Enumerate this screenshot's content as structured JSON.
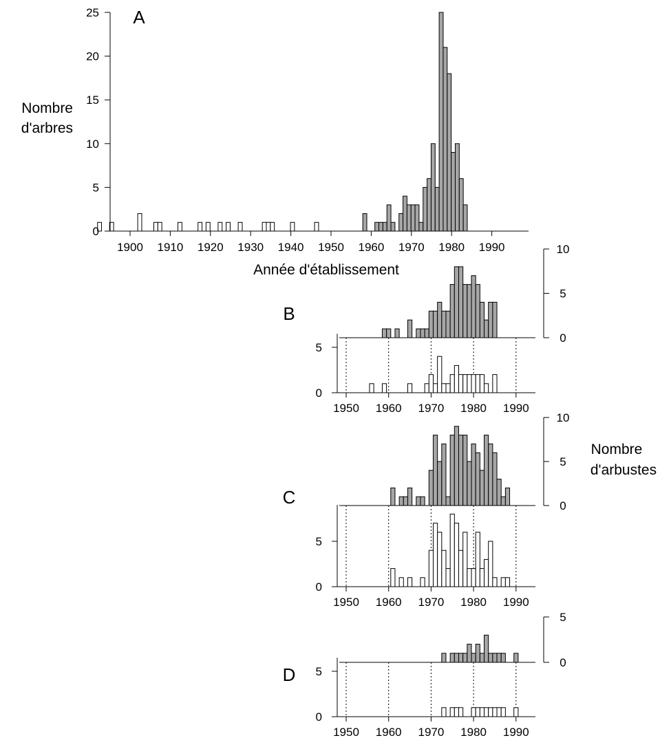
{
  "chart_data": [
    {
      "panel": "A",
      "type": "bar",
      "xlabel": "Année d'établissement",
      "ylabel": [
        "Nombre",
        "d'arbres"
      ],
      "xlim": [
        1894,
        1992
      ],
      "ylim": [
        0,
        25
      ],
      "xticks": [
        1900,
        1910,
        1920,
        1930,
        1940,
        1950,
        1960,
        1970,
        1980,
        1990
      ],
      "yticks": [
        0,
        5,
        10,
        15,
        20,
        25
      ],
      "series": [
        {
          "fill": "white",
          "points": [
            [
              1896,
              1
            ],
            [
              1899,
              1
            ],
            [
              1906,
              2
            ],
            [
              1910,
              1
            ],
            [
              1911,
              1
            ],
            [
              1916,
              1
            ],
            [
              1921,
              1
            ],
            [
              1923,
              1
            ],
            [
              1926,
              1
            ],
            [
              1928,
              1
            ],
            [
              1931,
              1
            ],
            [
              1937,
              1
            ],
            [
              1938,
              1
            ],
            [
              1939,
              1
            ],
            [
              1944,
              1
            ],
            [
              1950,
              1
            ]
          ]
        },
        {
          "fill": "gray",
          "points": [
            [
              1962,
              2
            ],
            [
              1965,
              1
            ],
            [
              1966,
              1
            ],
            [
              1967,
              1
            ],
            [
              1968,
              3
            ],
            [
              1969,
              1
            ],
            [
              1971,
              2
            ],
            [
              1972,
              4
            ],
            [
              1973,
              3
            ],
            [
              1974,
              3
            ],
            [
              1975,
              3
            ],
            [
              1976,
              1
            ],
            [
              1977,
              5
            ],
            [
              1978,
              6
            ],
            [
              1979,
              10
            ],
            [
              1980,
              5
            ],
            [
              1981,
              25
            ],
            [
              1982,
              21
            ],
            [
              1983,
              18
            ],
            [
              1984,
              9
            ],
            [
              1985,
              10
            ],
            [
              1986,
              6
            ],
            [
              1987,
              3
            ]
          ]
        }
      ]
    },
    {
      "panel": "B",
      "type": "bar",
      "xlim": [
        1948,
        1992
      ],
      "xticks": [
        1950,
        1960,
        1970,
        1980,
        1990
      ],
      "gray_ylim": [
        0,
        10
      ],
      "gray_yticks": [
        0,
        5,
        10
      ],
      "white_ylim": [
        0,
        6.5
      ],
      "white_yticks": [
        0,
        5
      ],
      "series": [
        {
          "fill": "gray",
          "points": [
            [
              1959,
              1
            ],
            [
              1960,
              1
            ],
            [
              1962,
              1
            ],
            [
              1965,
              2
            ],
            [
              1967,
              1
            ],
            [
              1968,
              1
            ],
            [
              1969,
              1
            ],
            [
              1970,
              3
            ],
            [
              1971,
              3
            ],
            [
              1972,
              4
            ],
            [
              1973,
              3
            ],
            [
              1974,
              3
            ],
            [
              1975,
              6
            ],
            [
              1976,
              8
            ],
            [
              1977,
              8
            ],
            [
              1978,
              6
            ],
            [
              1979,
              6
            ],
            [
              1980,
              7
            ],
            [
              1981,
              6
            ],
            [
              1982,
              4
            ],
            [
              1983,
              2
            ],
            [
              1984,
              4
            ],
            [
              1985,
              4
            ]
          ]
        },
        {
          "fill": "white",
          "points": [
            [
              1956,
              1
            ],
            [
              1959,
              1
            ],
            [
              1965,
              1
            ],
            [
              1969,
              1
            ],
            [
              1970,
              2
            ],
            [
              1971,
              1
            ],
            [
              1972,
              4
            ],
            [
              1973,
              1
            ],
            [
              1974,
              1
            ],
            [
              1975,
              2
            ],
            [
              1976,
              3
            ],
            [
              1977,
              2
            ],
            [
              1978,
              2
            ],
            [
              1979,
              2
            ],
            [
              1980,
              2
            ],
            [
              1981,
              2
            ],
            [
              1982,
              2
            ],
            [
              1983,
              1
            ],
            [
              1985,
              2
            ]
          ]
        }
      ]
    },
    {
      "panel": "C",
      "type": "bar",
      "xlim": [
        1948,
        1992
      ],
      "xticks": [
        1950,
        1960,
        1970,
        1980,
        1990
      ],
      "gray_ylim": [
        0,
        10
      ],
      "gray_yticks": [
        0,
        5,
        10
      ],
      "white_ylim": [
        0,
        9
      ],
      "white_yticks": [
        0,
        5
      ],
      "series": [
        {
          "fill": "gray",
          "points": [
            [
              1961,
              2
            ],
            [
              1963,
              1
            ],
            [
              1964,
              1
            ],
            [
              1965,
              2
            ],
            [
              1967,
              1
            ],
            [
              1968,
              1
            ],
            [
              1970,
              4
            ],
            [
              1971,
              8
            ],
            [
              1972,
              5
            ],
            [
              1973,
              7
            ],
            [
              1974,
              1
            ],
            [
              1975,
              8
            ],
            [
              1976,
              9
            ],
            [
              1977,
              8
            ],
            [
              1978,
              8
            ],
            [
              1979,
              5
            ],
            [
              1980,
              7
            ],
            [
              1981,
              6
            ],
            [
              1982,
              4
            ],
            [
              1983,
              8
            ],
            [
              1984,
              7
            ],
            [
              1985,
              6
            ],
            [
              1986,
              3
            ],
            [
              1987,
              1
            ],
            [
              1988,
              2
            ]
          ]
        },
        {
          "fill": "white",
          "points": [
            [
              1961,
              2
            ],
            [
              1963,
              1
            ],
            [
              1965,
              1
            ],
            [
              1968,
              1
            ],
            [
              1970,
              4
            ],
            [
              1971,
              7
            ],
            [
              1972,
              6
            ],
            [
              1973,
              4
            ],
            [
              1974,
              2
            ],
            [
              1975,
              8
            ],
            [
              1976,
              7
            ],
            [
              1977,
              4
            ],
            [
              1978,
              6
            ],
            [
              1979,
              2
            ],
            [
              1980,
              2
            ],
            [
              1981,
              6
            ],
            [
              1982,
              2
            ],
            [
              1983,
              3
            ],
            [
              1984,
              5
            ],
            [
              1985,
              1
            ],
            [
              1987,
              1
            ],
            [
              1988,
              1
            ]
          ]
        }
      ]
    },
    {
      "panel": "D",
      "type": "bar",
      "xlim": [
        1948,
        1992
      ],
      "xticks": [
        1950,
        1960,
        1970,
        1980,
        1990
      ],
      "gray_ylim": [
        0,
        5
      ],
      "gray_yticks": [
        0,
        5
      ],
      "white_ylim": [
        0,
        6.5
      ],
      "white_yticks": [
        0,
        5
      ],
      "series": [
        {
          "fill": "gray",
          "points": [
            [
              1973,
              1
            ],
            [
              1975,
              1
            ],
            [
              1976,
              1
            ],
            [
              1977,
              1
            ],
            [
              1978,
              1
            ],
            [
              1979,
              2
            ],
            [
              1980,
              1
            ],
            [
              1981,
              2
            ],
            [
              1982,
              1
            ],
            [
              1983,
              3
            ],
            [
              1984,
              1
            ],
            [
              1985,
              1
            ],
            [
              1986,
              1
            ],
            [
              1987,
              1
            ],
            [
              1990,
              1
            ]
          ]
        },
        {
          "fill": "white",
          "points": [
            [
              1973,
              1
            ],
            [
              1975,
              1
            ],
            [
              1976,
              1
            ],
            [
              1977,
              1
            ],
            [
              1980,
              1
            ],
            [
              1981,
              1
            ],
            [
              1982,
              1
            ],
            [
              1983,
              1
            ],
            [
              1984,
              1
            ],
            [
              1985,
              1
            ],
            [
              1986,
              1
            ],
            [
              1987,
              1
            ],
            [
              1990,
              1
            ]
          ]
        }
      ]
    }
  ],
  "right_axis_label": [
    "Nombre",
    "d'arbustes"
  ],
  "colors": {
    "gray_bar": "#a6a6a6",
    "white_bar": "#ffffff",
    "stroke": "#000000"
  }
}
